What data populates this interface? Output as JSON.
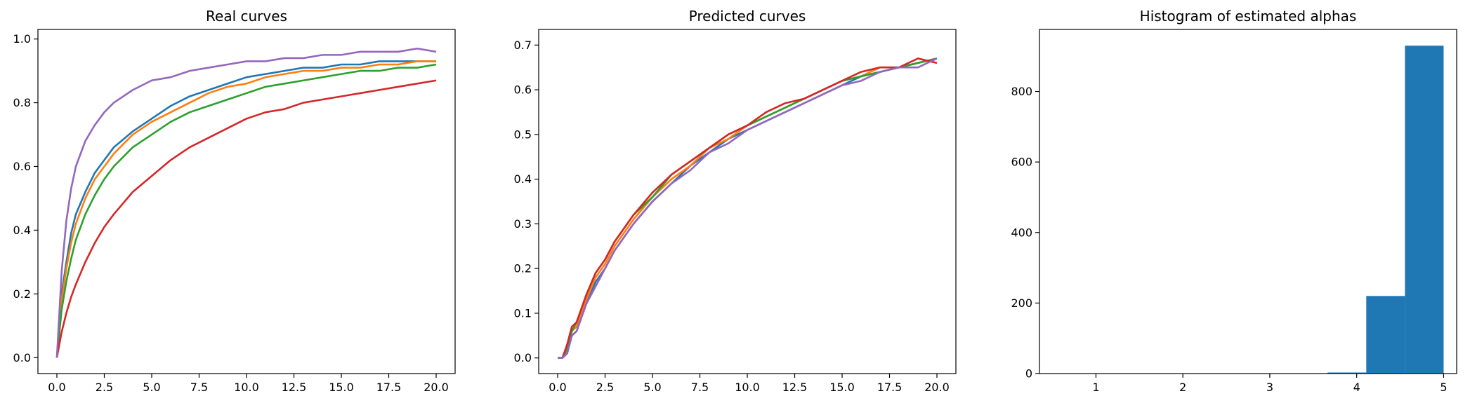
{
  "colors": {
    "blue": "#1f77b4",
    "orange": "#ff7f0e",
    "green": "#2ca02c",
    "red": "#d62728",
    "purple": "#9467bd",
    "bar": "#1f77b4"
  },
  "chart_data": [
    {
      "type": "line",
      "title": "Real curves",
      "xlabel": "",
      "ylabel": "",
      "xlim": [
        -1.0,
        21.0
      ],
      "ylim": [
        -0.05,
        1.03
      ],
      "xticks": [
        "0.0",
        "2.5",
        "5.0",
        "7.5",
        "10.0",
        "12.5",
        "15.0",
        "17.5",
        "20.0"
      ],
      "yticks": [
        "0.0",
        "0.2",
        "0.4",
        "0.6",
        "0.8",
        "1.0"
      ],
      "grid": false,
      "x": [
        0,
        0.25,
        0.5,
        0.75,
        1,
        1.5,
        2,
        2.5,
        3,
        4,
        5,
        6,
        7,
        8,
        9,
        10,
        11,
        12,
        13,
        14,
        15,
        16,
        17,
        18,
        19,
        20
      ],
      "series": [
        {
          "color": "blue",
          "values": [
            0.0,
            0.2,
            0.3,
            0.39,
            0.45,
            0.52,
            0.58,
            0.62,
            0.66,
            0.71,
            0.75,
            0.79,
            0.82,
            0.84,
            0.86,
            0.88,
            0.89,
            0.9,
            0.91,
            0.91,
            0.92,
            0.92,
            0.93,
            0.93,
            0.93,
            0.93
          ]
        },
        {
          "color": "orange",
          "values": [
            0.0,
            0.18,
            0.28,
            0.36,
            0.42,
            0.5,
            0.56,
            0.6,
            0.64,
            0.7,
            0.74,
            0.77,
            0.8,
            0.83,
            0.85,
            0.86,
            0.88,
            0.89,
            0.9,
            0.9,
            0.91,
            0.91,
            0.92,
            0.92,
            0.93,
            0.93
          ]
        },
        {
          "color": "green",
          "values": [
            0.0,
            0.15,
            0.24,
            0.31,
            0.37,
            0.45,
            0.51,
            0.56,
            0.6,
            0.66,
            0.7,
            0.74,
            0.77,
            0.79,
            0.81,
            0.83,
            0.85,
            0.86,
            0.87,
            0.88,
            0.89,
            0.9,
            0.9,
            0.91,
            0.91,
            0.92
          ]
        },
        {
          "color": "red",
          "values": [
            0.0,
            0.08,
            0.14,
            0.19,
            0.23,
            0.3,
            0.36,
            0.41,
            0.45,
            0.52,
            0.57,
            0.62,
            0.66,
            0.69,
            0.72,
            0.75,
            0.77,
            0.78,
            0.8,
            0.81,
            0.82,
            0.83,
            0.84,
            0.85,
            0.86,
            0.87
          ]
        },
        {
          "color": "purple",
          "values": [
            0.0,
            0.27,
            0.43,
            0.53,
            0.6,
            0.68,
            0.73,
            0.77,
            0.8,
            0.84,
            0.87,
            0.88,
            0.9,
            0.91,
            0.92,
            0.93,
            0.93,
            0.94,
            0.94,
            0.95,
            0.95,
            0.96,
            0.96,
            0.96,
            0.97,
            0.96
          ]
        }
      ]
    },
    {
      "type": "line",
      "title": "Predicted curves",
      "xlabel": "",
      "ylabel": "",
      "xlim": [
        -1.0,
        21.0
      ],
      "ylim": [
        -0.035,
        0.735
      ],
      "xticks": [
        "0.0",
        "2.5",
        "5.0",
        "7.5",
        "10.0",
        "12.5",
        "15.0",
        "17.5",
        "20.0"
      ],
      "yticks": [
        "0.0",
        "0.1",
        "0.2",
        "0.3",
        "0.4",
        "0.5",
        "0.6",
        "0.7"
      ],
      "grid": false,
      "x": [
        0,
        0.25,
        0.5,
        0.75,
        1,
        1.5,
        2,
        2.5,
        3,
        4,
        5,
        6,
        7,
        8,
        9,
        10,
        11,
        12,
        13,
        14,
        15,
        16,
        17,
        18,
        19,
        20
      ],
      "series": [
        {
          "color": "blue",
          "values": [
            0.0,
            0.0,
            0.01,
            0.05,
            0.06,
            0.12,
            0.17,
            0.2,
            0.24,
            0.3,
            0.35,
            0.39,
            0.43,
            0.46,
            0.49,
            0.51,
            0.53,
            0.55,
            0.57,
            0.59,
            0.61,
            0.63,
            0.64,
            0.65,
            0.66,
            0.67
          ]
        },
        {
          "color": "orange",
          "values": [
            0.0,
            0.0,
            0.02,
            0.06,
            0.07,
            0.13,
            0.18,
            0.21,
            0.25,
            0.31,
            0.36,
            0.4,
            0.43,
            0.47,
            0.49,
            0.52,
            0.54,
            0.56,
            0.58,
            0.6,
            0.62,
            0.63,
            0.65,
            0.65,
            0.66,
            0.67
          ]
        },
        {
          "color": "green",
          "values": [
            0.0,
            0.0,
            0.02,
            0.06,
            0.08,
            0.14,
            0.19,
            0.22,
            0.26,
            0.32,
            0.36,
            0.41,
            0.44,
            0.47,
            0.5,
            0.52,
            0.54,
            0.56,
            0.58,
            0.6,
            0.62,
            0.63,
            0.64,
            0.65,
            0.66,
            0.67
          ]
        },
        {
          "color": "red",
          "values": [
            0.0,
            0.0,
            0.03,
            0.07,
            0.08,
            0.14,
            0.19,
            0.22,
            0.26,
            0.32,
            0.37,
            0.41,
            0.44,
            0.47,
            0.5,
            0.52,
            0.55,
            0.57,
            0.58,
            0.6,
            0.62,
            0.64,
            0.65,
            0.65,
            0.67,
            0.66
          ]
        },
        {
          "color": "purple",
          "values": [
            0.0,
            0.0,
            0.01,
            0.05,
            0.06,
            0.12,
            0.16,
            0.2,
            0.24,
            0.3,
            0.35,
            0.39,
            0.42,
            0.46,
            0.48,
            0.51,
            0.53,
            0.55,
            0.57,
            0.59,
            0.61,
            0.62,
            0.64,
            0.65,
            0.65,
            0.67
          ]
        }
      ]
    },
    {
      "type": "bar",
      "title": "Histogram of estimated alphas",
      "xlabel": "",
      "ylabel": "",
      "xlim": [
        0.35,
        5.15
      ],
      "ylim": [
        0,
        976
      ],
      "xticks": [
        "1",
        "2",
        "3",
        "4",
        "5"
      ],
      "yticks": [
        "0",
        "200",
        "400",
        "600",
        "800"
      ],
      "grid": false,
      "bins": [
        {
          "start": 0.55,
          "end": 0.995,
          "value": 0
        },
        {
          "start": 0.995,
          "end": 1.44,
          "value": 0
        },
        {
          "start": 1.44,
          "end": 1.885,
          "value": 0
        },
        {
          "start": 1.885,
          "end": 2.33,
          "value": 0
        },
        {
          "start": 2.33,
          "end": 2.775,
          "value": 0
        },
        {
          "start": 2.775,
          "end": 3.22,
          "value": 0
        },
        {
          "start": 3.22,
          "end": 3.665,
          "value": 0
        },
        {
          "start": 3.665,
          "end": 4.11,
          "value": 3
        },
        {
          "start": 4.11,
          "end": 4.555,
          "value": 220
        },
        {
          "start": 4.555,
          "end": 5.0,
          "value": 930
        }
      ]
    }
  ]
}
